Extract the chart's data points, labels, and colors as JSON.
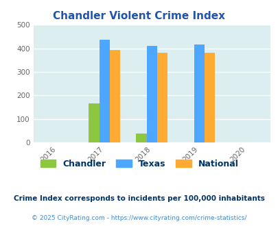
{
  "title": "Chandler Violent Crime Index",
  "years": [
    2016,
    2017,
    2018,
    2019,
    2020
  ],
  "bar_years": [
    2017,
    2018,
    2019
  ],
  "chandler": [
    167,
    38,
    0
  ],
  "texas": [
    437,
    411,
    417
  ],
  "national": [
    394,
    381,
    381
  ],
  "chandler_color": "#8dc63f",
  "texas_color": "#4da6ff",
  "national_color": "#ffaa33",
  "bg_color": "#ddeef0",
  "ylim": [
    0,
    500
  ],
  "yticks": [
    0,
    100,
    200,
    300,
    400,
    500
  ],
  "bar_width": 0.22,
  "legend_labels": [
    "Chandler",
    "Texas",
    "National"
  ],
  "footnote1": "Crime Index corresponds to incidents per 100,000 inhabitants",
  "footnote2": "© 2025 CityRating.com - https://www.cityrating.com/crime-statistics/",
  "title_color": "#2255aa",
  "footnote1_color": "#003366",
  "footnote2_color": "#4488cc",
  "grid_color": "#ffffff"
}
